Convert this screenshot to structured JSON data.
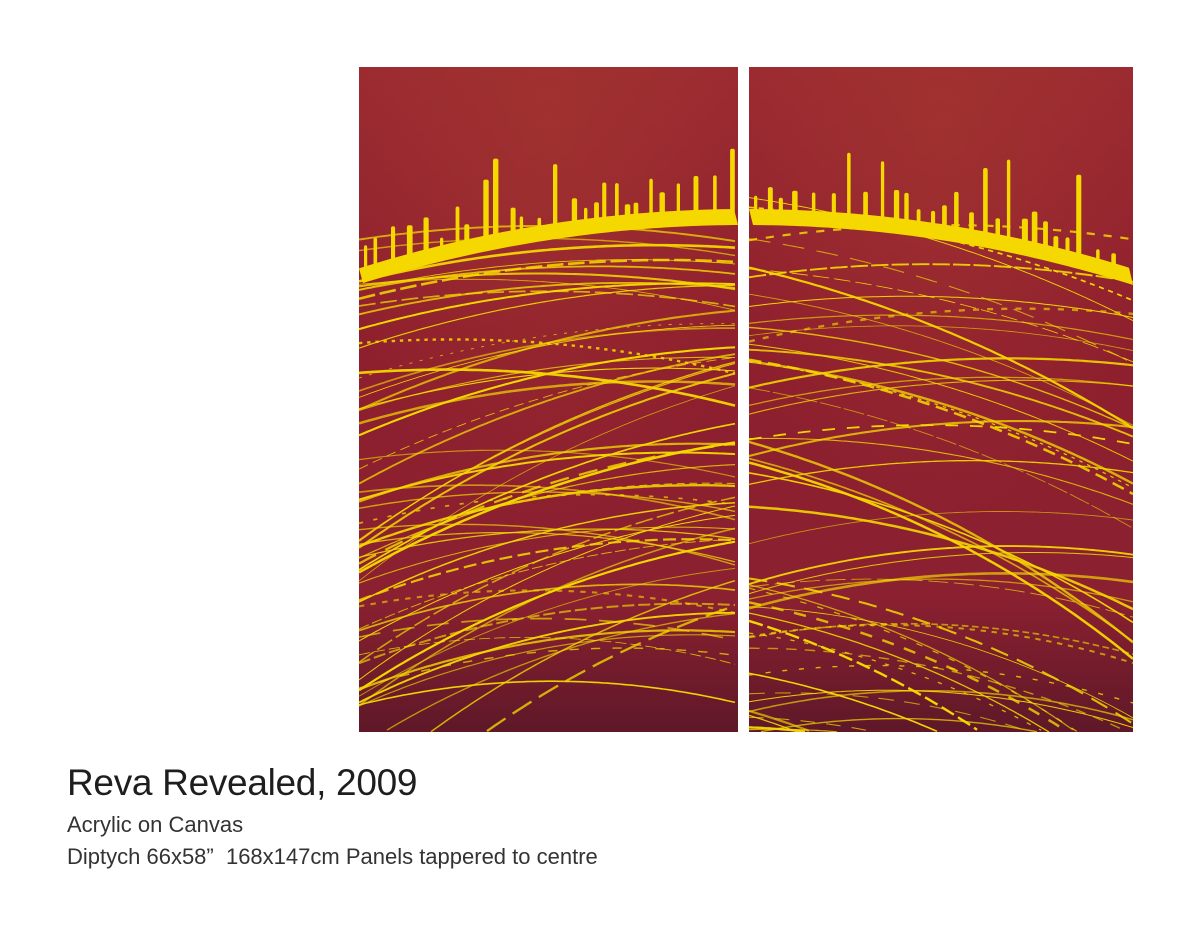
{
  "artwork": {
    "title": "Reva Revealed, 2009",
    "medium": "Acrylic on Canvas",
    "dimensions": "Diptych 66x58”  168x147cm Panels tappered to centre",
    "colors": {
      "canvas_red": "#8e1e2c",
      "canvas_dark": "#5a1424",
      "paint_yellow": "#f5d800",
      "background": "#ffffff"
    }
  }
}
